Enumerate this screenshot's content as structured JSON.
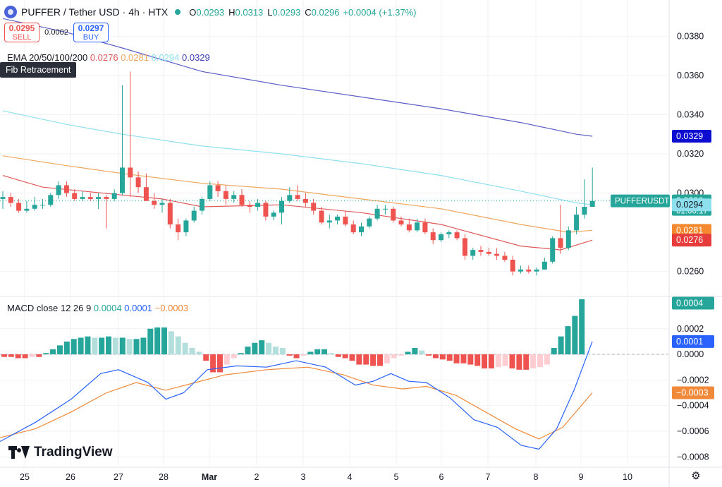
{
  "header": {
    "title": "PUFFER / Tether USD · 4h · HTX",
    "o_label": "O",
    "o": "0.0293",
    "h_label": "H",
    "h": "0.0313",
    "l_label": "L",
    "l": "0.0293",
    "c_label": "C",
    "c": "0.0296",
    "change": "+0.0004 (+1.37%)"
  },
  "trade": {
    "sell_price": "0.0295",
    "sell_label": "SELL",
    "spread": "0.0002",
    "buy_price": "0.0297",
    "buy_label": "BUY"
  },
  "ema_legend": {
    "label": "EMA 20/50/100/200",
    "v20": "0.0276",
    "v50": "0.0281",
    "v100": "0.0294",
    "v200": "0.0329"
  },
  "tooltip": "Fib Retracement",
  "macd_legend": {
    "label": "MACD close 12 26 9",
    "hist": "0.0004",
    "macd": "0.0001",
    "signal": "−0.0003"
  },
  "brand": "TradingView",
  "colors": {
    "up": "#26a69a",
    "down": "#ef5350",
    "hist_up": "#26a69a",
    "hist_up_light": "#b2dfdb",
    "hist_down": "#ef5350",
    "hist_down_light": "#ffcdd2",
    "ema20": "#e05a5a",
    "ema50": "#f0a65c",
    "ema100": "#8ee0ef",
    "ema200": "#5b5fc7",
    "macd": "#2962ff",
    "signal": "#f08a3a"
  },
  "chart_data": [
    {
      "type": "candlestick",
      "title": "PUFFER / Tether USD · 4h · HTX",
      "x_ticks": [
        "25",
        "26",
        "27",
        "28",
        "Mar",
        "2",
        "3",
        "4",
        "5",
        "6",
        "7",
        "8",
        "9",
        "10"
      ],
      "y_ticks": [
        "0.0380",
        "0.0360",
        "0.0340",
        "0.0320",
        "0.0300",
        "0.0260"
      ],
      "ylim": [
        0.0248,
        0.0392
      ],
      "candles": [
        [
          0.0297,
          0.0301,
          0.0292,
          0.0298
        ],
        [
          0.0298,
          0.03,
          0.0293,
          0.0295
        ],
        [
          0.0295,
          0.0297,
          0.029,
          0.0291
        ],
        [
          0.0291,
          0.0296,
          0.029,
          0.0292
        ],
        [
          0.0292,
          0.0298,
          0.0291,
          0.0294
        ],
        [
          0.0294,
          0.0297,
          0.0292,
          0.0294
        ],
        [
          0.0294,
          0.03,
          0.0293,
          0.0299
        ],
        [
          0.0299,
          0.0306,
          0.0297,
          0.0304
        ],
        [
          0.0304,
          0.0306,
          0.0298,
          0.03
        ],
        [
          0.03,
          0.0302,
          0.0296,
          0.0297
        ],
        [
          0.0297,
          0.0301,
          0.0296,
          0.0298
        ],
        [
          0.0298,
          0.03,
          0.0296,
          0.0297
        ],
        [
          0.0297,
          0.03,
          0.0292,
          0.0298
        ],
        [
          0.0298,
          0.0299,
          0.0282,
          0.0297
        ],
        [
          0.0297,
          0.0302,
          0.0296,
          0.03
        ],
        [
          0.03,
          0.0355,
          0.0299,
          0.0313
        ],
        [
          0.0313,
          0.0362,
          0.0298,
          0.0308
        ],
        [
          0.0308,
          0.0311,
          0.03,
          0.0303
        ],
        [
          0.0303,
          0.031,
          0.0296,
          0.0296
        ],
        [
          0.0296,
          0.03,
          0.0292,
          0.0294
        ],
        [
          0.0294,
          0.0297,
          0.029,
          0.0295
        ],
        [
          0.0295,
          0.0297,
          0.0282,
          0.0284
        ],
        [
          0.0284,
          0.0287,
          0.0276,
          0.028
        ],
        [
          0.028,
          0.0287,
          0.0278,
          0.0286
        ],
        [
          0.0286,
          0.0293,
          0.0285,
          0.0291
        ],
        [
          0.0291,
          0.0298,
          0.0289,
          0.0297
        ],
        [
          0.0297,
          0.0306,
          0.0296,
          0.0304
        ],
        [
          0.0304,
          0.0306,
          0.0298,
          0.0301
        ],
        [
          0.0301,
          0.0304,
          0.0294,
          0.0297
        ],
        [
          0.0297,
          0.0301,
          0.0295,
          0.0299
        ],
        [
          0.0299,
          0.0302,
          0.0293,
          0.0294
        ],
        [
          0.0294,
          0.0296,
          0.029,
          0.0293
        ],
        [
          0.0293,
          0.0297,
          0.0291,
          0.0295
        ],
        [
          0.0295,
          0.0296,
          0.0286,
          0.0288
        ],
        [
          0.0288,
          0.0291,
          0.0286,
          0.029
        ],
        [
          0.029,
          0.0298,
          0.0284,
          0.0296
        ],
        [
          0.0296,
          0.0303,
          0.0295,
          0.0299
        ],
        [
          0.0299,
          0.0304,
          0.0296,
          0.0297
        ],
        [
          0.0297,
          0.03,
          0.0293,
          0.0295
        ],
        [
          0.0295,
          0.0297,
          0.0289,
          0.0291
        ],
        [
          0.0291,
          0.0293,
          0.0284,
          0.0285
        ],
        [
          0.0285,
          0.0289,
          0.0282,
          0.0286
        ],
        [
          0.0286,
          0.0289,
          0.0284,
          0.0288
        ],
        [
          0.0288,
          0.0291,
          0.0283,
          0.0284
        ],
        [
          0.0284,
          0.0286,
          0.0279,
          0.028
        ],
        [
          0.028,
          0.0285,
          0.0278,
          0.0283
        ],
        [
          0.0283,
          0.0288,
          0.0282,
          0.0287
        ],
        [
          0.0287,
          0.0294,
          0.0286,
          0.0292
        ],
        [
          0.0292,
          0.0294,
          0.0289,
          0.0292
        ],
        [
          0.0292,
          0.0293,
          0.0285,
          0.0286
        ],
        [
          0.0286,
          0.0288,
          0.0283,
          0.0284
        ],
        [
          0.0284,
          0.0287,
          0.028,
          0.0281
        ],
        [
          0.0281,
          0.0287,
          0.028,
          0.0285
        ],
        [
          0.0285,
          0.0287,
          0.0279,
          0.028
        ],
        [
          0.028,
          0.0282,
          0.0274,
          0.0276
        ],
        [
          0.0276,
          0.028,
          0.0275,
          0.0279
        ],
        [
          0.0279,
          0.0281,
          0.0277,
          0.028
        ],
        [
          0.028,
          0.0281,
          0.0276,
          0.0277
        ],
        [
          0.0277,
          0.0279,
          0.0266,
          0.0268
        ],
        [
          0.0268,
          0.0272,
          0.0266,
          0.0271
        ],
        [
          0.0271,
          0.0273,
          0.0268,
          0.027
        ],
        [
          0.027,
          0.0272,
          0.0268,
          0.0269
        ],
        [
          0.0269,
          0.0272,
          0.0266,
          0.0268
        ],
        [
          0.0268,
          0.027,
          0.0265,
          0.0266
        ],
        [
          0.0266,
          0.0268,
          0.0258,
          0.026
        ],
        [
          0.026,
          0.0263,
          0.0259,
          0.0261
        ],
        [
          0.0261,
          0.0263,
          0.0259,
          0.026
        ],
        [
          0.026,
          0.0262,
          0.0258,
          0.0261
        ],
        [
          0.0261,
          0.0267,
          0.0261,
          0.0265
        ],
        [
          0.0265,
          0.0278,
          0.0264,
          0.0277
        ],
        [
          0.0277,
          0.0294,
          0.0269,
          0.0272
        ],
        [
          0.0272,
          0.0283,
          0.0271,
          0.0281
        ],
        [
          0.0281,
          0.0293,
          0.0279,
          0.0289
        ],
        [
          0.0289,
          0.0307,
          0.0287,
          0.0293
        ],
        [
          0.0293,
          0.0313,
          0.0293,
          0.0296
        ]
      ],
      "ema": {
        "ema20": [
          [
            0,
            0.0309
          ],
          [
            5,
            0.0303
          ],
          [
            15,
            0.0299
          ],
          [
            20,
            0.0297
          ],
          [
            25,
            0.0293
          ],
          [
            35,
            0.0294
          ],
          [
            45,
            0.029
          ],
          [
            55,
            0.0284
          ],
          [
            65,
            0.0273
          ],
          [
            70,
            0.0271
          ],
          [
            74,
            0.0276
          ]
        ],
        "ema50": [
          [
            0,
            0.0319
          ],
          [
            8,
            0.0314
          ],
          [
            15,
            0.031
          ],
          [
            25,
            0.0305
          ],
          [
            35,
            0.0302
          ],
          [
            45,
            0.0297
          ],
          [
            55,
            0.0292
          ],
          [
            65,
            0.0284
          ],
          [
            71,
            0.028
          ],
          [
            74,
            0.0281
          ]
        ],
        "ema100": [
          [
            0,
            0.0342
          ],
          [
            8,
            0.0335
          ],
          [
            15,
            0.033
          ],
          [
            25,
            0.0324
          ],
          [
            35,
            0.032
          ],
          [
            45,
            0.0315
          ],
          [
            55,
            0.0309
          ],
          [
            65,
            0.0301
          ],
          [
            72,
            0.0295
          ],
          [
            74,
            0.0294
          ]
        ],
        "ema200": [
          [
            0,
            0.0389
          ],
          [
            8,
            0.0382
          ],
          [
            15,
            0.0374
          ],
          [
            25,
            0.0362
          ],
          [
            35,
            0.0355
          ],
          [
            45,
            0.0349
          ],
          [
            55,
            0.0343
          ],
          [
            65,
            0.0336
          ],
          [
            72,
            0.033
          ],
          [
            74,
            0.0329
          ]
        ]
      },
      "price_labels": [
        {
          "text": "PUFFERUSDT",
          "value": 0.0296,
          "kind": "symbol"
        },
        {
          "text": "0.0296",
          "sub": "01:00:17",
          "value": 0.0296,
          "color": "#26a69a"
        },
        {
          "text": "0.0329",
          "value": 0.0329,
          "color": "#0d0dd1"
        },
        {
          "text": "0.0294",
          "value": 0.0294,
          "color": "#8ee0ef",
          "dark_text": true
        },
        {
          "text": "0.0281",
          "value": 0.0281,
          "color": "#f5892f"
        },
        {
          "text": "0.0276",
          "value": 0.0276,
          "color": "#e63c3c"
        }
      ]
    },
    {
      "type": "bar",
      "title": "MACD close 12 26 9",
      "y_ticks": [
        "0.0002",
        "0.0000",
        "−0.0002",
        "−0.0004",
        "−0.0006",
        "−0.0008"
      ],
      "ylim": [
        -0.00087,
        0.00043
      ],
      "histogram": [
        -2e-05,
        -2e-05,
        -3e-05,
        -3e-05,
        -2e-05,
        -2e-05,
        1e-05,
        4e-05,
        7e-05,
        0.0001,
        0.00012,
        0.00013,
        0.00014,
        0.00013,
        0.00013,
        0.00014,
        0.00013,
        0.00013,
        0.00012,
        0.00012,
        0.00013,
        0.0002,
        0.00021,
        0.00021,
        0.00018,
        0.00014,
        9e-05,
        5e-05,
        2e-05,
        -5e-05,
        -0.00014,
        -0.00014,
        -8e-05,
        -3e-05,
        1e-05,
        6e-05,
        9e-05,
        0.00011,
        9e-05,
        6e-05,
        5e-05,
        -1e-05,
        -3e-05,
        -1e-05,
        2e-05,
        4e-05,
        4e-05,
        1e-05,
        -2e-05,
        -3e-05,
        -5e-05,
        -8e-05,
        -8e-05,
        -9e-05,
        -9e-05,
        -7e-05,
        -3e-05,
        -1e-05,
        2e-05,
        5e-05,
        3e-05,
        -1e-05,
        -3e-05,
        -4e-05,
        -5e-05,
        -7e-05,
        -7e-05,
        -8e-05,
        -9e-05,
        -0.00011,
        -0.00011,
        -0.0001,
        -9e-05,
        -0.00011,
        -0.00012,
        -0.00012,
        -0.00011,
        -0.0001,
        -8e-05,
        5e-05,
        0.00014,
        0.00022,
        0.0003,
        0.00043
      ],
      "macd_line": [
        [
          0,
          -0.00068
        ],
        [
          6,
          -0.00053
        ],
        [
          12,
          -0.00035
        ],
        [
          17,
          -0.00015
        ],
        [
          20,
          -0.00012
        ],
        [
          25,
          -0.00022
        ],
        [
          28,
          -0.00035
        ],
        [
          31,
          -0.0003
        ],
        [
          35,
          -0.00012
        ],
        [
          40,
          -9e-05
        ],
        [
          45,
          -0.0001
        ],
        [
          50,
          -5e-05
        ],
        [
          55,
          -0.0001
        ],
        [
          60,
          -0.00024
        ],
        [
          63,
          -0.00021
        ],
        [
          66,
          -0.00015
        ],
        [
          69,
          -0.00021
        ],
        [
          72,
          -0.00022
        ],
        [
          76,
          -0.00034
        ],
        [
          80,
          -0.00051
        ],
        [
          84,
          -0.00057
        ],
        [
          88,
          -0.00071
        ],
        [
          91,
          -0.00074
        ],
        [
          94,
          -0.00058
        ],
        [
          97,
          -0.00027
        ],
        [
          100,
          0.0001
        ]
      ],
      "signal_line": [
        [
          0,
          -0.00065
        ],
        [
          6,
          -0.00058
        ],
        [
          12,
          -0.00045
        ],
        [
          18,
          -0.0003
        ],
        [
          23,
          -0.00022
        ],
        [
          28,
          -0.00028
        ],
        [
          33,
          -0.00022
        ],
        [
          38,
          -0.00016
        ],
        [
          45,
          -0.00012
        ],
        [
          52,
          -0.0001
        ],
        [
          58,
          -0.00016
        ],
        [
          63,
          -0.00024
        ],
        [
          68,
          -0.00027
        ],
        [
          72,
          -0.00025
        ],
        [
          77,
          -0.00032
        ],
        [
          82,
          -0.00045
        ],
        [
          87,
          -0.00058
        ],
        [
          91,
          -0.00066
        ],
        [
          95,
          -0.00057
        ],
        [
          100,
          -0.0003
        ]
      ],
      "price_labels": [
        {
          "text": "0.0004",
          "value": 0.0004,
          "color": "#26a69a"
        },
        {
          "text": "0.0001",
          "value": 0.0001,
          "color": "#2962ff"
        },
        {
          "text": "−0.0003",
          "value": -0.0003,
          "color": "#f08a3a"
        }
      ]
    }
  ]
}
